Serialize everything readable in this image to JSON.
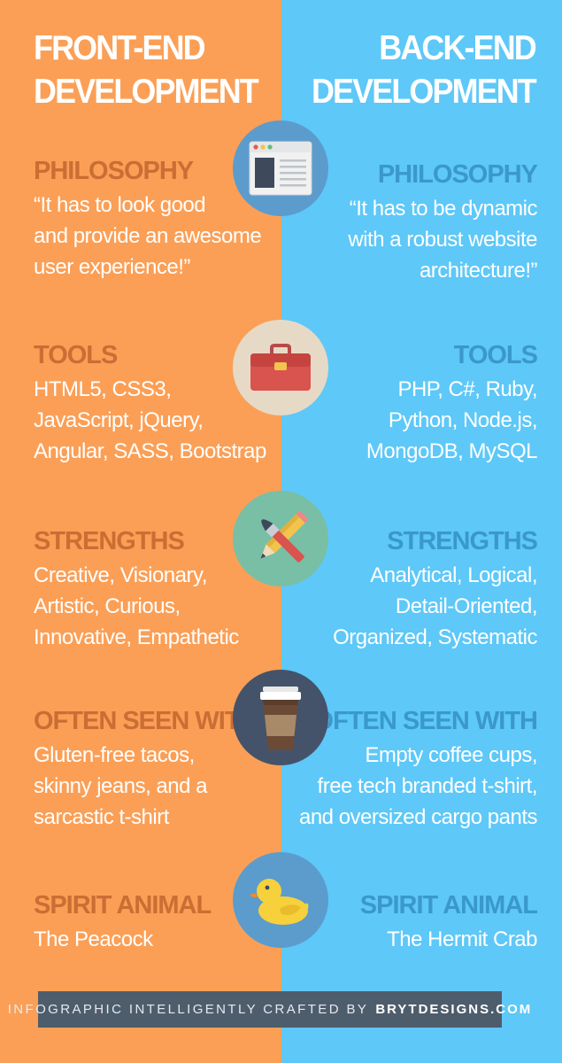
{
  "left_title": [
    "FRONT-END",
    "DEVELOPMENT"
  ],
  "right_title": [
    "BACK-END",
    "DEVELOPMENT"
  ],
  "colors": {
    "front": "#fb9f56",
    "back": "#5ec8f8",
    "front_heading": "#c96e34",
    "back_heading": "#3a98cc",
    "footer_bg": "#4e5d6c"
  },
  "sections": [
    {
      "icon": "browser-window-icon",
      "circle_color": "#5b9ccd",
      "left": {
        "heading": "PHILOSOPHY",
        "lines": [
          "“It has to look good",
          "and provide an awesome",
          "user experience!”"
        ]
      },
      "right": {
        "heading": "PHILOSOPHY",
        "lines": [
          "“It has to be dynamic",
          "with a robust website",
          "architecture!”"
        ]
      }
    },
    {
      "icon": "toolbox-icon",
      "circle_color": "#e6dac6",
      "left": {
        "heading": "TOOLS",
        "lines": [
          "HTML5, CSS3,",
          "JavaScript, jQuery,",
          "Angular, SASS, Bootstrap"
        ]
      },
      "right": {
        "heading": "TOOLS",
        "lines": [
          "PHP, C#, Ruby,",
          "Python, Node.js,",
          "MongoDB, MySQL"
        ]
      }
    },
    {
      "icon": "brush-pencil-icon",
      "circle_color": "#78bfa6",
      "left": {
        "heading": "STRENGTHS",
        "lines": [
          "Creative, Visionary,",
          "Artistic, Curious,",
          "Innovative, Empathetic"
        ]
      },
      "right": {
        "heading": "STRENGTHS",
        "lines": [
          "Analytical, Logical,",
          "Detail-Oriented,",
          "Organized, Systematic"
        ]
      }
    },
    {
      "icon": "coffee-cup-icon",
      "circle_color": "#44536a",
      "left": {
        "heading": "OFTEN SEEN WITH",
        "lines": [
          "Gluten-free tacos,",
          "skinny jeans, and a",
          "sarcastic t-shirt"
        ]
      },
      "right": {
        "heading": "OFTEN SEEN WITH",
        "lines": [
          "Empty coffee cups,",
          "free tech branded t-shirt,",
          "and oversized cargo pants"
        ]
      }
    },
    {
      "icon": "rubber-duck-icon",
      "circle_color": "#5b9ccd",
      "left": {
        "heading": "SPIRIT ANIMAL",
        "lines": [
          "The Peacock"
        ]
      },
      "right": {
        "heading": "SPIRIT ANIMAL",
        "lines": [
          "The Hermit Crab"
        ]
      }
    }
  ],
  "footer": {
    "text": "INFOGRAPHIC INTELLIGENTLY CRAFTED BY",
    "brand": "BRYTDESIGNS.COM"
  }
}
